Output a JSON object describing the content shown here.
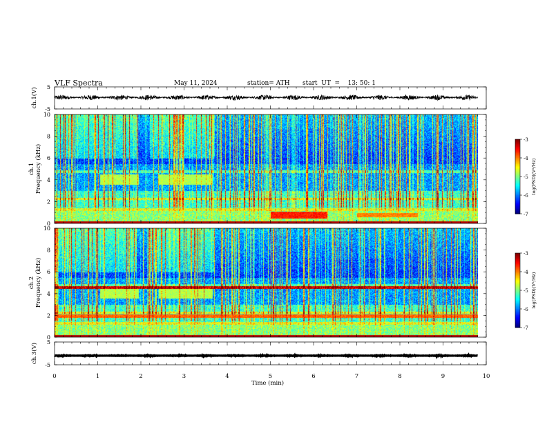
{
  "header": {
    "title": "VLF Spectra",
    "date": "May 11, 2024",
    "station": "station= ATH",
    "start_ut": "start  UT  =    13: 50: 1"
  },
  "chart_data": {
    "type": "heatmap",
    "xlabel": "Time (min)",
    "xlim": [
      0,
      10
    ],
    "xticks": [
      "0",
      "1",
      "2",
      "3",
      "4",
      "5",
      "6",
      "7",
      "8",
      "9",
      "10"
    ],
    "panels": [
      {
        "name": "ch1-waveform",
        "type": "line",
        "ylabel": "ch.1(V)",
        "ylim": [
          -5,
          5
        ],
        "yticks": [
          "5",
          "-5"
        ],
        "series": [
          {
            "x_range": [
              0,
              9.8
            ],
            "mean": 0.2,
            "amplitude": 1.2
          }
        ]
      },
      {
        "name": "ch1-spectrogram",
        "type": "heatmap",
        "ylabel_line1": "ch.1",
        "ylabel_line2": "Frequency (kHz)",
        "ylim": [
          0,
          10
        ],
        "yticks": [
          "0",
          "2",
          "4",
          "6",
          "8",
          "10"
        ],
        "x_extent": [
          0,
          9.8
        ],
        "colorbar": {
          "label": "log(PSD)(V²/Hz)",
          "range": [
            -7,
            -3
          ],
          "ticks": [
            "-3",
            "-4",
            "-5",
            "-6",
            "-7"
          ]
        },
        "features": [
          {
            "x_range": [
              1.05,
              1.95
            ],
            "f_range": [
              3.6,
              4.5
            ],
            "level": -4.8
          },
          {
            "x_range": [
              2.4,
              3.65
            ],
            "f_range": [
              3.6,
              4.5
            ],
            "level": -4.8
          },
          {
            "x_range": [
              5.0,
              6.3
            ],
            "f_range": [
              0.5,
              1.1
            ],
            "level": -3.6
          },
          {
            "x_range": [
              7.0,
              8.4
            ],
            "f_range": [
              0.6,
              1.0
            ],
            "level": -4.0
          }
        ]
      },
      {
        "name": "ch2-spectrogram",
        "type": "heatmap",
        "ylabel_line1": "ch.2",
        "ylabel_line2": "Frequency (kHz)",
        "ylim": [
          0,
          10
        ],
        "yticks": [
          "0",
          "2",
          "4",
          "6",
          "8",
          "10"
        ],
        "x_extent": [
          0,
          9.8
        ],
        "colorbar": {
          "label": "log(PSD)(V²/Hz)",
          "range": [
            -7,
            -3
          ],
          "ticks": [
            "-3",
            "-4",
            "-5",
            "-6",
            "-7"
          ]
        },
        "features": [
          {
            "x_range": [
              1.05,
              1.95
            ],
            "f_range": [
              3.6,
              4.5
            ],
            "level": -4.8
          },
          {
            "x_range": [
              2.4,
              3.65
            ],
            "f_range": [
              3.6,
              4.5
            ],
            "level": -4.8
          },
          {
            "x_range": [
              0,
              9.8
            ],
            "f_range": [
              1.8,
              2.1
            ],
            "level": -3.9
          }
        ]
      },
      {
        "name": "ch3-waveform",
        "type": "line",
        "ylabel": "ch.3(V)",
        "ylim": [
          -5,
          5
        ],
        "yticks": [
          "5",
          "-5"
        ],
        "series": [
          {
            "x_range": [
              0,
              9.8
            ],
            "mean": -1.0,
            "amplitude": 0.15
          }
        ]
      }
    ]
  }
}
